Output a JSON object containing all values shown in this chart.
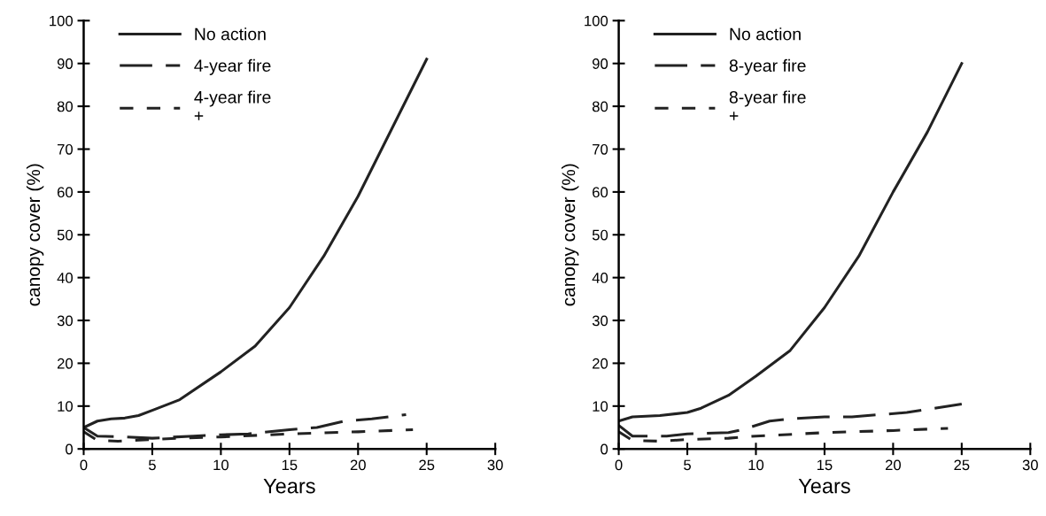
{
  "chart_data": [
    {
      "type": "line",
      "xlabel": "Years",
      "ylabel": "canopy cover (%)",
      "xlim": [
        0,
        30
      ],
      "ylim": [
        0,
        100
      ],
      "xticks": [
        0,
        5,
        10,
        15,
        20,
        25,
        30
      ],
      "yticks": [
        0,
        10,
        20,
        30,
        40,
        50,
        60,
        70,
        80,
        90,
        100
      ],
      "grid": false,
      "legend": "top left",
      "marker": "none",
      "series": [
        {
          "name": "No action",
          "color": "#222222",
          "line_style": "solid",
          "x": [
            0,
            1,
            2,
            3,
            4,
            5,
            7,
            10,
            12.5,
            15,
            17.5,
            20,
            22.5,
            25
          ],
          "values": [
            5,
            6.5,
            7,
            7.2,
            7.8,
            9,
            11.5,
            18,
            24,
            33,
            45,
            59,
            75,
            91
          ]
        },
        {
          "name": "4-year fire",
          "color": "#222222",
          "line_style": "dashed",
          "x": [
            0,
            1,
            3,
            5,
            8,
            10,
            12,
            15,
            17,
            19,
            21,
            23.5
          ],
          "values": [
            5,
            3,
            2.8,
            2.5,
            3,
            3.3,
            3.5,
            4.5,
            5,
            6.5,
            7,
            8
          ]
        },
        {
          "name": "4-year fire\n+",
          "color": "#222222",
          "line_style": "dotted",
          "x": [
            0,
            1,
            2.5,
            5,
            7,
            10,
            15,
            20,
            24
          ],
          "values": [
            4,
            2,
            1.8,
            2.2,
            2.5,
            2.8,
            3.5,
            4,
            4.5
          ]
        }
      ]
    },
    {
      "type": "line",
      "xlabel": "Years",
      "ylabel": "canopy cover (%)",
      "xlim": [
        0,
        30
      ],
      "ylim": [
        0,
        100
      ],
      "xticks": [
        0,
        5,
        10,
        15,
        20,
        25,
        30
      ],
      "yticks": [
        0,
        10,
        20,
        30,
        40,
        50,
        60,
        70,
        80,
        90,
        100
      ],
      "grid": false,
      "legend": "top left",
      "marker": "none",
      "series": [
        {
          "name": "No action",
          "color": "#222222",
          "line_style": "solid",
          "x": [
            0,
            1,
            3,
            5,
            6,
            8,
            10,
            12.5,
            15,
            17.5,
            20,
            22.5,
            25
          ],
          "values": [
            6.5,
            7.5,
            7.8,
            8.5,
            9.5,
            12.5,
            17,
            23,
            33,
            45,
            60,
            74,
            90
          ]
        },
        {
          "name": "8-year fire",
          "color": "#222222",
          "line_style": "dashed",
          "x": [
            0,
            1,
            3.5,
            5,
            8,
            9,
            11,
            12.5,
            15,
            17,
            19,
            21,
            23,
            25
          ],
          "values": [
            5.5,
            3,
            3,
            3.5,
            3.8,
            4.5,
            6.5,
            7,
            7.5,
            7.5,
            8,
            8.5,
            9.5,
            10.5
          ]
        },
        {
          "name": "8-year fire\n+",
          "color": "#222222",
          "line_style": "dotted",
          "x": [
            0,
            1,
            3,
            5,
            8,
            10,
            15,
            20,
            24
          ],
          "values": [
            4,
            2,
            1.8,
            2.2,
            2.5,
            3,
            3.8,
            4.3,
            4.8
          ]
        }
      ]
    }
  ]
}
